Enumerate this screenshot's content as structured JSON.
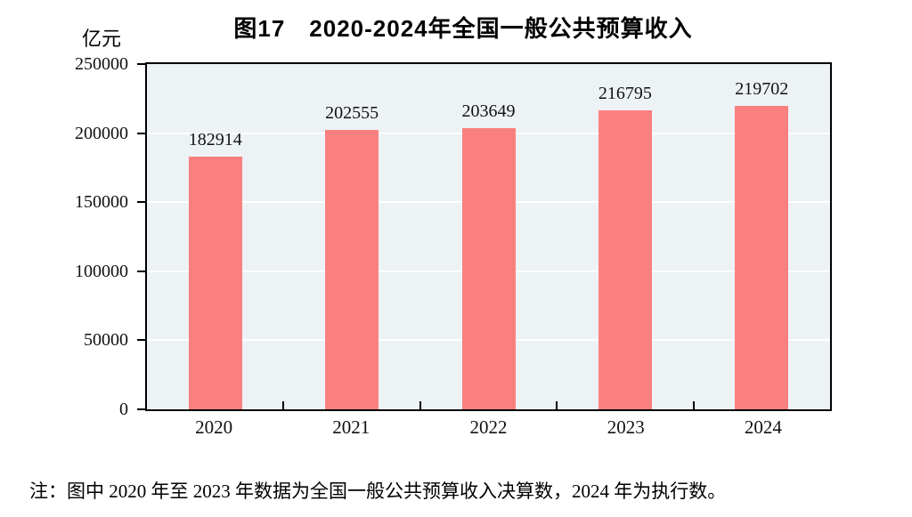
{
  "chart_data": {
    "type": "bar",
    "title": "图17　2020-2024年全国一般公共预算收入",
    "unit_label": "亿元",
    "categories": [
      "2020",
      "2021",
      "2022",
      "2023",
      "2024"
    ],
    "values": [
      182914,
      202555,
      203649,
      216795,
      219702
    ],
    "ylim": [
      0,
      250000
    ],
    "yticks": [
      0,
      50000,
      100000,
      150000,
      200000,
      250000
    ],
    "grid": true,
    "legend_position": "none",
    "bar_color": "#FA8080",
    "plot_background_color": "#EDF2F5",
    "gridline_color": "#FFFFFF",
    "axis_color": "#000000"
  },
  "note": "注：图中 2020 年至 2023 年数据为全国一般公共预算收入决算数，2024 年为执行数。"
}
